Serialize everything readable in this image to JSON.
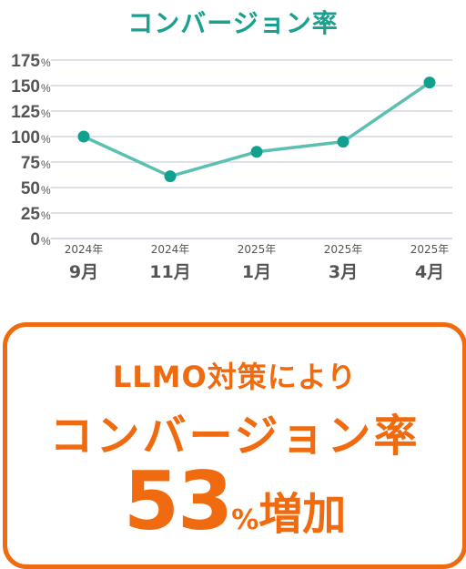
{
  "chart_data": {
    "type": "line",
    "title": "コンバージョン率",
    "x": [
      {
        "year": "2024年",
        "month": "9月"
      },
      {
        "year": "2024年",
        "month": "11月"
      },
      {
        "year": "2025年",
        "month": "1月"
      },
      {
        "year": "2025年",
        "month": "3月"
      },
      {
        "year": "2025年",
        "month": "4月"
      }
    ],
    "series": [
      {
        "values": [
          100,
          61,
          85,
          95,
          153
        ]
      }
    ],
    "yticks": [
      0,
      25,
      50,
      75,
      100,
      125,
      150,
      175
    ],
    "ytick_unit": "%",
    "ylim": [
      0,
      175
    ],
    "grid": true,
    "colors": {
      "line": "#5bbfb1",
      "marker": "#11a08e",
      "grid": "#c9d1da",
      "axis_text": "#555555"
    }
  },
  "callout": {
    "line1": "LLMO対策により",
    "line2": "コンバージョン率",
    "value": "53",
    "unit": "%",
    "suffix": "増加",
    "color": "#f06a0f"
  }
}
